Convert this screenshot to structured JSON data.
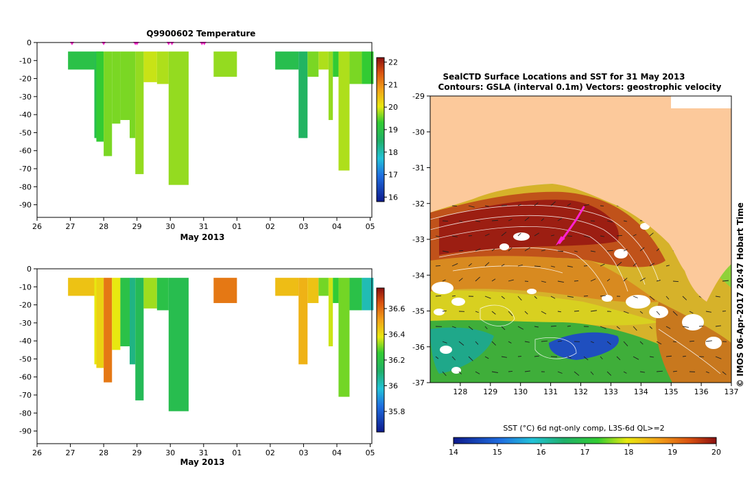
{
  "colors": {
    "land": "#fcc99b",
    "frame": "#000000",
    "vector": "#202020",
    "track": "#ff22d0",
    "contour": "#ffffff"
  },
  "chart_data": [
    {
      "type": "heatmap",
      "name": "temperature-profile",
      "title": "Q9900602  Temperature",
      "xlabel": "May 2013",
      "xticks": [
        "26",
        "27",
        "28",
        "29",
        "30",
        "31",
        "01",
        "02",
        "03",
        "04",
        "05"
      ],
      "ylim": [
        -97,
        0
      ],
      "yticks": [
        0,
        -10,
        -20,
        -30,
        -40,
        -50,
        -60,
        -70,
        -80,
        -90
      ],
      "colorbar": {
        "min": 15.8,
        "max": 22.2,
        "ticks": [
          16,
          17,
          18,
          19,
          20,
          21,
          22
        ]
      },
      "profile_markers_days": [
        1.05,
        2.0,
        2.95,
        3.0,
        3.95,
        4.05,
        4.95,
        5.02
      ],
      "profiles": [
        {
          "x0": 0.93,
          "x1": 1.72,
          "depth": 15,
          "value": 19.0
        },
        {
          "x0": 1.72,
          "x1": 1.98,
          "depth": 53,
          "value": 18.9
        },
        {
          "x0": 1.78,
          "x1": 2.0,
          "depth": 55,
          "value": 19.3
        },
        {
          "x0": 2.0,
          "x1": 2.25,
          "depth": 63,
          "value": 19.6
        },
        {
          "x0": 2.25,
          "x1": 2.5,
          "depth": 45,
          "value": 19.6
        },
        {
          "x0": 2.5,
          "x1": 2.78,
          "depth": 43,
          "value": 19.6
        },
        {
          "x0": 2.78,
          "x1": 2.95,
          "depth": 53,
          "value": 19.6
        },
        {
          "x0": 2.95,
          "x1": 3.2,
          "depth": 73,
          "value": 19.7
        },
        {
          "x0": 3.2,
          "x1": 3.6,
          "depth": 22,
          "value": 19.9
        },
        {
          "x0": 3.6,
          "x1": 3.95,
          "depth": 23,
          "value": 19.8
        },
        {
          "x0": 3.95,
          "x1": 4.55,
          "depth": 79,
          "value": 19.7
        },
        {
          "x0": 5.3,
          "x1": 6.0,
          "depth": 19,
          "value": 19.7
        },
        {
          "x0": 7.15,
          "x1": 7.85,
          "depth": 15,
          "value": 18.9
        },
        {
          "x0": 7.85,
          "x1": 8.12,
          "depth": 53,
          "value": 18.6
        },
        {
          "x0": 8.12,
          "x1": 8.45,
          "depth": 19,
          "value": 19.6
        },
        {
          "x0": 8.45,
          "x1": 8.75,
          "depth": 15,
          "value": 19.8
        },
        {
          "x0": 8.75,
          "x1": 8.88,
          "depth": 43,
          "value": 19.7
        },
        {
          "x0": 8.88,
          "x1": 9.05,
          "depth": 19,
          "value": 19.3
        },
        {
          "x0": 9.05,
          "x1": 9.38,
          "depth": 71,
          "value": 19.8
        },
        {
          "x0": 9.38,
          "x1": 9.75,
          "depth": 23,
          "value": 19.6
        },
        {
          "x0": 9.75,
          "x1": 10.1,
          "depth": 23,
          "value": 19.3
        }
      ]
    },
    {
      "type": "heatmap",
      "name": "salinity-profile",
      "title": "",
      "xlabel": "May 2013",
      "xticks": [
        "26",
        "27",
        "28",
        "29",
        "30",
        "31",
        "01",
        "02",
        "03",
        "04",
        "05"
      ],
      "ylim": [
        -97,
        0
      ],
      "yticks": [
        0,
        -10,
        -20,
        -30,
        -40,
        -50,
        -60,
        -70,
        -80,
        -90
      ],
      "colorbar": {
        "min": 35.64,
        "max": 36.76,
        "ticks": [
          35.8,
          36,
          36.2,
          36.4,
          36.6
        ]
      },
      "profiles": [
        {
          "x0": 0.93,
          "x1": 1.72,
          "depth": 15,
          "value": 36.45
        },
        {
          "x0": 1.72,
          "x1": 1.98,
          "depth": 53,
          "value": 36.38
        },
        {
          "x0": 1.78,
          "x1": 2.0,
          "depth": 55,
          "value": 36.42
        },
        {
          "x0": 2.0,
          "x1": 2.25,
          "depth": 63,
          "value": 36.58
        },
        {
          "x0": 2.25,
          "x1": 2.5,
          "depth": 45,
          "value": 36.38
        },
        {
          "x0": 2.5,
          "x1": 2.78,
          "depth": 43,
          "value": 36.2
        },
        {
          "x0": 2.78,
          "x1": 2.95,
          "depth": 53,
          "value": 36.08
        },
        {
          "x0": 2.95,
          "x1": 3.2,
          "depth": 73,
          "value": 36.16
        },
        {
          "x0": 3.2,
          "x1": 3.6,
          "depth": 22,
          "value": 36.33
        },
        {
          "x0": 3.6,
          "x1": 3.95,
          "depth": 23,
          "value": 36.2
        },
        {
          "x0": 3.95,
          "x1": 4.55,
          "depth": 79,
          "value": 36.18
        },
        {
          "x0": 5.3,
          "x1": 6.0,
          "depth": 19,
          "value": 36.58
        },
        {
          "x0": 7.15,
          "x1": 7.85,
          "depth": 15,
          "value": 36.46
        },
        {
          "x0": 7.85,
          "x1": 8.12,
          "depth": 53,
          "value": 36.48
        },
        {
          "x0": 8.12,
          "x1": 8.45,
          "depth": 19,
          "value": 36.45
        },
        {
          "x0": 8.45,
          "x1": 8.75,
          "depth": 15,
          "value": 36.3
        },
        {
          "x0": 8.75,
          "x1": 8.88,
          "depth": 43,
          "value": 36.36
        },
        {
          "x0": 8.88,
          "x1": 9.05,
          "depth": 19,
          "value": 36.25
        },
        {
          "x0": 9.05,
          "x1": 9.38,
          "depth": 71,
          "value": 36.3
        },
        {
          "x0": 9.38,
          "x1": 9.75,
          "depth": 23,
          "value": 36.2
        },
        {
          "x0": 9.75,
          "x1": 10.1,
          "depth": 23,
          "value": 36.02
        }
      ]
    },
    {
      "type": "heatmap",
      "name": "sst-map",
      "title_line1": "SealCTD Surface Locations and SST for 31 May 2013",
      "title_line2": "Contours: GSLA (interval 0.1m) Vectors: geostrophic velocity",
      "xlim": [
        127,
        137
      ],
      "ylim": [
        -37,
        -29
      ],
      "xticks": [
        128,
        129,
        130,
        131,
        132,
        133,
        134,
        135,
        136,
        137
      ],
      "yticks": [
        -29,
        -30,
        -31,
        -32,
        -33,
        -34,
        -35,
        -36,
        -37
      ],
      "colorbar": {
        "label": "SST (°C) 6d ngt-only comp, L3S-6d QL>=2",
        "min": 14,
        "max": 20,
        "ticks": [
          14,
          15,
          16,
          17,
          18,
          19,
          20
        ]
      },
      "side_label": "© IMOS 06-Apr-2017 20:47 Hobart Time",
      "seal_track": [
        [
          131.3,
          -33.1
        ],
        [
          131.6,
          -32.75
        ],
        [
          131.85,
          -32.45
        ],
        [
          132.1,
          -32.1
        ]
      ]
    }
  ]
}
